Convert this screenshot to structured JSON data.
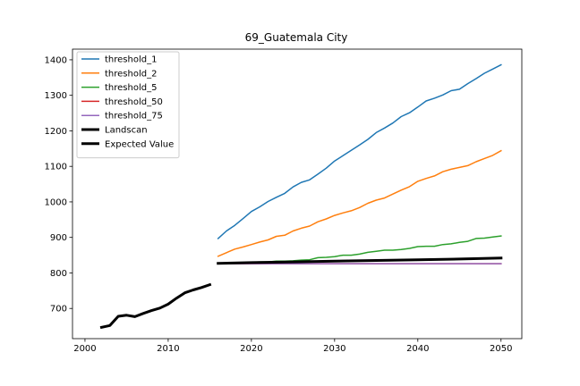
{
  "chart_data": {
    "type": "line",
    "title": "69_Guatemala City",
    "xlabel": "",
    "ylabel": "",
    "xlim": [
      1998.5,
      2052.5
    ],
    "ylim": [
      615,
      1430
    ],
    "xticks": [
      2000,
      2010,
      2020,
      2030,
      2040,
      2050
    ],
    "yticks": [
      700,
      800,
      900,
      1000,
      1100,
      1200,
      1300,
      1400
    ],
    "grid": false,
    "legend_position": "top-left",
    "series": [
      {
        "name": "threshold_1",
        "color": "#1f77b4",
        "linewidth": 1.5,
        "x": [
          2016,
          2017,
          2018,
          2019,
          2020,
          2021,
          2022,
          2023,
          2024,
          2025,
          2026,
          2027,
          2028,
          2029,
          2030,
          2031,
          2032,
          2033,
          2034,
          2035,
          2036,
          2037,
          2038,
          2039,
          2040,
          2041,
          2042,
          2043,
          2044,
          2045,
          2046,
          2047,
          2048,
          2049,
          2050
        ],
        "y": [
          897,
          918,
          934,
          953,
          973,
          986,
          1001,
          1013,
          1024,
          1042,
          1055,
          1062,
          1078,
          1095,
          1115,
          1130,
          1145,
          1160,
          1176,
          1195,
          1208,
          1222,
          1240,
          1251,
          1267,
          1284,
          1292,
          1301,
          1313,
          1317,
          1333,
          1347,
          1362,
          1374,
          1386
        ]
      },
      {
        "name": "threshold_2",
        "color": "#ff7f0e",
        "linewidth": 1.5,
        "x": [
          2016,
          2017,
          2018,
          2019,
          2020,
          2021,
          2022,
          2023,
          2024,
          2025,
          2026,
          2027,
          2028,
          2029,
          2030,
          2031,
          2032,
          2033,
          2034,
          2035,
          2036,
          2037,
          2038,
          2039,
          2040,
          2041,
          2042,
          2043,
          2044,
          2045,
          2046,
          2047,
          2048,
          2049,
          2050
        ],
        "y": [
          847,
          857,
          867,
          873,
          880,
          887,
          893,
          903,
          906,
          918,
          926,
          932,
          944,
          952,
          962,
          969,
          975,
          984,
          996,
          1005,
          1011,
          1022,
          1033,
          1043,
          1058,
          1066,
          1073,
          1085,
          1092,
          1097,
          1102,
          1113,
          1122,
          1131,
          1144
        ]
      },
      {
        "name": "threshold_5",
        "color": "#2ca02c",
        "linewidth": 1.5,
        "x": [
          2016,
          2017,
          2018,
          2019,
          2020,
          2021,
          2022,
          2023,
          2024,
          2025,
          2026,
          2027,
          2028,
          2029,
          2030,
          2031,
          2032,
          2033,
          2034,
          2035,
          2036,
          2037,
          2038,
          2039,
          2040,
          2041,
          2042,
          2043,
          2044,
          2045,
          2046,
          2047,
          2048,
          2049,
          2050
        ],
        "y": [
          827,
          828,
          828,
          829,
          830,
          831,
          831,
          833,
          833,
          834,
          836,
          837,
          843,
          844,
          846,
          850,
          850,
          853,
          858,
          861,
          864,
          864,
          866,
          869,
          874,
          875,
          875,
          880,
          882,
          886,
          889,
          897,
          898,
          901,
          904
        ]
      },
      {
        "name": "threshold_50",
        "color": "#d62728",
        "linewidth": 1.5,
        "x": [
          2016,
          2050
        ],
        "y": [
          826,
          826
        ]
      },
      {
        "name": "threshold_75",
        "color": "#9467bd",
        "linewidth": 1.5,
        "x": [
          2016,
          2050
        ],
        "y": [
          826,
          826
        ]
      },
      {
        "name": "Landscan",
        "color": "#000000",
        "linewidth": 3,
        "x": [
          2002,
          2003,
          2004,
          2005,
          2006,
          2007,
          2008,
          2009,
          2010,
          2011,
          2012,
          2013,
          2014,
          2015
        ],
        "y": [
          647,
          652,
          678,
          681,
          677,
          686,
          694,
          701,
          712,
          729,
          744,
          752,
          759,
          767
        ]
      },
      {
        "name": "Expected Value",
        "color": "#000000",
        "linewidth": 3,
        "x": [
          2016,
          2020,
          2025,
          2030,
          2035,
          2040,
          2045,
          2050
        ],
        "y": [
          827,
          829,
          831,
          833,
          835,
          837,
          839,
          842
        ]
      }
    ]
  }
}
